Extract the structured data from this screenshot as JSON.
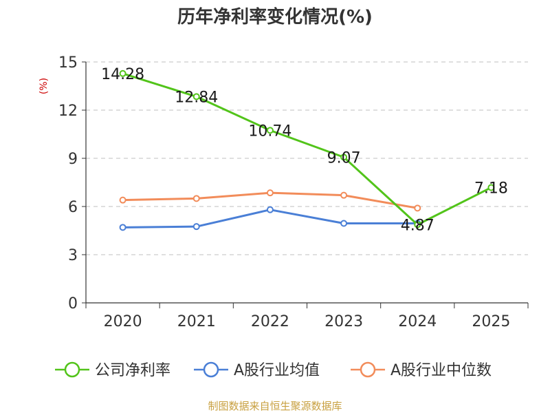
{
  "chart_data": {
    "type": "line",
    "title": "历年净利率变化情况(%)",
    "ylabel": "(%)",
    "xlabel": "",
    "categories": [
      "2020",
      "2021",
      "2022",
      "2023",
      "2024",
      "2025"
    ],
    "ylim": [
      0,
      15
    ],
    "yticks": [
      0,
      3,
      6,
      9,
      12,
      15
    ],
    "grid": true,
    "legend_position": "bottom",
    "series": [
      {
        "name": "公司净利率",
        "color": "#52c41a",
        "values": [
          14.28,
          12.84,
          10.74,
          9.07,
          4.87,
          7.18
        ],
        "labels": [
          "14.28",
          "12.84",
          "10.74",
          "9.07",
          "4.87",
          "7.18"
        ]
      },
      {
        "name": "A股行业均值",
        "color": "#4a7fd6",
        "values": [
          4.7,
          4.75,
          5.8,
          4.95,
          4.95,
          null
        ]
      },
      {
        "name": "A股行业中位数",
        "color": "#f28c5a",
        "values": [
          6.4,
          6.5,
          6.85,
          6.7,
          5.9,
          null
        ]
      }
    ]
  },
  "colors": {
    "axis": "#333333",
    "grid": "#cccccc",
    "unit": "#cc0000",
    "source": "#c8a040"
  },
  "source_text": "制图数据来自恒生聚源数据库"
}
